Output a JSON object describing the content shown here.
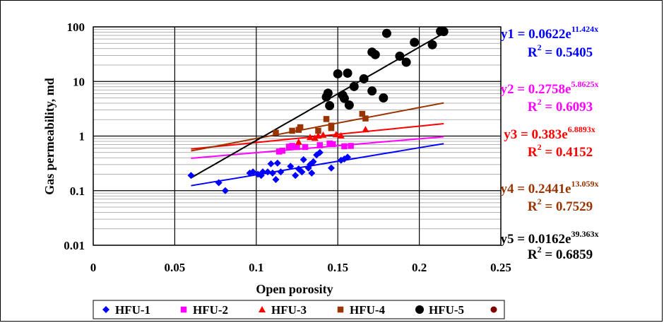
{
  "chart_data": {
    "type": "scatter",
    "xlabel": "Open porosity",
    "ylabel": "Gas permeability, md",
    "xlim": [
      0,
      0.25
    ],
    "ylim": [
      0.01,
      100
    ],
    "y_scale": "log",
    "x_ticks": [
      "0",
      "0.05",
      "0.1",
      "0.15",
      "0.2",
      "0.25"
    ],
    "y_ticks": [
      "0.01",
      "0.1",
      "1",
      "10",
      "100"
    ],
    "grid": true,
    "legend_position": "bottom",
    "series": [
      {
        "name": "HFU-1",
        "color": "#0000FF",
        "marker": "diamond",
        "points": [
          [
            0.06,
            0.19
          ],
          [
            0.077,
            0.14
          ],
          [
            0.081,
            0.1
          ],
          [
            0.096,
            0.21
          ],
          [
            0.098,
            0.22
          ],
          [
            0.101,
            0.2
          ],
          [
            0.103,
            0.19
          ],
          [
            0.104,
            0.22
          ],
          [
            0.107,
            0.22
          ],
          [
            0.109,
            0.31
          ],
          [
            0.11,
            0.21
          ],
          [
            0.112,
            0.16
          ],
          [
            0.113,
            0.32
          ],
          [
            0.115,
            0.22
          ],
          [
            0.121,
            0.28
          ],
          [
            0.124,
            0.19
          ],
          [
            0.126,
            0.25
          ],
          [
            0.128,
            0.22
          ],
          [
            0.129,
            0.37
          ],
          [
            0.132,
            0.26
          ],
          [
            0.133,
            0.3
          ],
          [
            0.134,
            0.21
          ],
          [
            0.135,
            0.34
          ],
          [
            0.137,
            0.45
          ],
          [
            0.139,
            0.5
          ],
          [
            0.146,
            0.26
          ],
          [
            0.152,
            0.36
          ],
          [
            0.154,
            0.38
          ],
          [
            0.156,
            0.41
          ]
        ],
        "trend": {
          "a": 0.0622,
          "b": 11.424
        },
        "equation": "y1 = 0.0622e",
        "exponent": "11.424x",
        "r2_label": "R",
        "r2_value": " = 0.5405"
      },
      {
        "name": "HFU-2",
        "color": "#FF00FF",
        "marker": "square",
        "points": [
          [
            0.114,
            0.52
          ],
          [
            0.116,
            0.54
          ],
          [
            0.12,
            0.64
          ],
          [
            0.122,
            0.66
          ],
          [
            0.125,
            0.63
          ],
          [
            0.13,
            0.63
          ],
          [
            0.139,
            0.68
          ],
          [
            0.145,
            0.73
          ],
          [
            0.147,
            0.71
          ],
          [
            0.154,
            0.65
          ],
          [
            0.158,
            0.66
          ]
        ],
        "trend": {
          "a": 0.2758,
          "b": 5.8625
        },
        "equation": "y2 = 0.2758e",
        "exponent": "5.8625x",
        "r2_label": "R",
        "r2_value": " = 0.6093"
      },
      {
        "name": "HFU-3",
        "color": "#FF0000",
        "marker": "triangle",
        "points": [
          [
            0.126,
            0.78
          ],
          [
            0.133,
            0.95
          ],
          [
            0.136,
            0.92
          ],
          [
            0.138,
            1.02
          ],
          [
            0.141,
            1.05
          ],
          [
            0.149,
            1.07
          ],
          [
            0.152,
            1.02
          ],
          [
            0.167,
            1.32
          ]
        ],
        "trend": {
          "a": 0.383,
          "b": 6.8893
        },
        "equation": "y3 = 0.383e",
        "exponent": "6.8893x",
        "r2_label": "R",
        "r2_value": " = 0.4152"
      },
      {
        "name": "HFU-4",
        "color": "#993300",
        "marker": "square",
        "points": [
          [
            0.112,
            1.15
          ],
          [
            0.122,
            1.25
          ],
          [
            0.126,
            1.3
          ],
          [
            0.127,
            1.45
          ],
          [
            0.138,
            1.25
          ],
          [
            0.143,
            2.05
          ],
          [
            0.146,
            1.55
          ],
          [
            0.146,
            1.4
          ],
          [
            0.165,
            2.55
          ],
          [
            0.167,
            2.1
          ]
        ],
        "trend": {
          "a": 0.2441,
          "b": 13.059
        },
        "equation": "y4 = 0.2441e",
        "exponent": "13.059x",
        "r2_label": "R",
        "r2_value": " = 0.7529"
      },
      {
        "name": "HFU-5",
        "color": "#000000",
        "marker": "circle",
        "points": [
          [
            0.143,
            5.2
          ],
          [
            0.144,
            6.1
          ],
          [
            0.145,
            3.6
          ],
          [
            0.15,
            13.8
          ],
          [
            0.153,
            5.6
          ],
          [
            0.154,
            4.9
          ],
          [
            0.156,
            14.2
          ],
          [
            0.157,
            3.7
          ],
          [
            0.16,
            8.1
          ],
          [
            0.166,
            11.2
          ],
          [
            0.171,
            6.7
          ],
          [
            0.171,
            34.5
          ],
          [
            0.173,
            31.0
          ],
          [
            0.178,
            5.0
          ],
          [
            0.18,
            76.0
          ],
          [
            0.188,
            29.0
          ],
          [
            0.192,
            22.5
          ],
          [
            0.197,
            52.0
          ],
          [
            0.208,
            47.0
          ],
          [
            0.213,
            83.0
          ],
          [
            0.215,
            82.0
          ]
        ],
        "trend": {
          "a": 0.0162,
          "b": 39.363
        },
        "equation": "y5 = 0.0162e",
        "exponent": "39.363x",
        "r2_label": "R",
        "r2_value": " = 0.6859"
      }
    ],
    "legend_extra": {
      "color": "#800000",
      "marker": "circle"
    },
    "trend_range": [
      0.06,
      0.215
    ]
  }
}
